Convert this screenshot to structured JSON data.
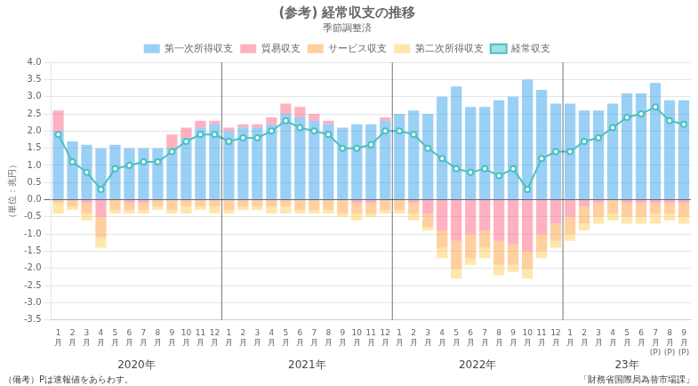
{
  "chart_data": {
    "type": "bar",
    "title": "(参考) 経常収支の推移",
    "subtitle": "季節調整済",
    "y_label": "（単位：兆円）",
    "footer": [
      "（備考）Pは速報値をあらわす。",
      "「財務省国際局為替市場課」"
    ],
    "annotations": [
      "2020年",
      "2021年",
      "2022年",
      "23年"
    ],
    "categories": [
      "1\n月",
      "2\n月",
      "3\n月",
      "4\n月",
      "5\n月",
      "6\n月",
      "7\n月",
      "8\n月",
      "9\n月",
      "10\n月",
      "11\n月",
      "12\n月",
      "1\n月",
      "2\n月",
      "3\n月",
      "4\n月",
      "5\n月",
      "6\n月",
      "7\n月",
      "8\n月",
      "9\n月",
      "10\n月",
      "11\n月",
      "12\n月",
      "1\n月",
      "2\n月",
      "3\n月",
      "4\n月",
      "5\n月",
      "6\n月",
      "7\n月",
      "8\n月",
      "9\n月",
      "10\n月",
      "11\n月",
      "12\n月",
      "1\n月",
      "2\n月",
      "3\n月",
      "4\n月",
      "5\n月",
      "6\n月",
      "7\n月\n(P)",
      "8\n月\n(P)",
      "9\n月\n(P)"
    ],
    "series": [
      {
        "name": "第一次所得収支",
        "values": [
          2.0,
          1.7,
          1.6,
          1.5,
          1.6,
          1.5,
          1.5,
          1.5,
          1.5,
          1.8,
          2.1,
          2.2,
          2.0,
          2.1,
          2.1,
          2.2,
          2.5,
          2.4,
          2.3,
          2.2,
          2.1,
          2.2,
          2.2,
          2.3,
          2.5,
          2.6,
          2.5,
          3.0,
          3.3,
          2.7,
          2.7,
          2.9,
          3.0,
          3.5,
          3.2,
          2.8,
          2.8,
          2.6,
          2.6,
          2.8,
          3.1,
          3.1,
          3.4,
          2.9,
          2.9
        ]
      },
      {
        "name": "貿易収支",
        "values": [
          0.6,
          0.0,
          -0.1,
          -0.5,
          0.0,
          -0.1,
          -0.1,
          0.0,
          0.4,
          0.3,
          0.2,
          0.1,
          0.1,
          0.1,
          0.1,
          0.2,
          0.3,
          0.3,
          0.2,
          0.1,
          0.0,
          -0.1,
          -0.1,
          0.1,
          0.0,
          -0.1,
          -0.4,
          -0.9,
          -1.2,
          -1.0,
          -0.9,
          -1.2,
          -1.3,
          -1.5,
          -1.0,
          -0.7,
          -0.5,
          -0.2,
          -0.1,
          0.0,
          -0.1,
          -0.1,
          -0.1,
          -0.1,
          -0.1
        ]
      },
      {
        "name": "サービス収支",
        "values": [
          -0.1,
          -0.2,
          -0.3,
          -0.6,
          -0.3,
          -0.2,
          -0.2,
          -0.2,
          -0.3,
          -0.2,
          -0.2,
          -0.2,
          -0.3,
          -0.2,
          -0.2,
          -0.2,
          -0.2,
          -0.3,
          -0.3,
          -0.3,
          -0.4,
          -0.3,
          -0.3,
          -0.3,
          -0.3,
          -0.3,
          -0.4,
          -0.5,
          -0.8,
          -0.7,
          -0.5,
          -0.7,
          -0.6,
          -0.5,
          -0.5,
          -0.5,
          -0.5,
          -0.5,
          -0.4,
          -0.4,
          -0.4,
          -0.4,
          -0.3,
          -0.3,
          -0.4
        ]
      },
      {
        "name": "第二次所得収支",
        "values": [
          -0.3,
          -0.1,
          -0.2,
          -0.3,
          -0.1,
          -0.1,
          -0.1,
          -0.1,
          -0.1,
          -0.2,
          -0.1,
          -0.2,
          -0.1,
          -0.1,
          -0.1,
          -0.2,
          -0.2,
          -0.1,
          -0.1,
          -0.1,
          -0.1,
          -0.2,
          -0.1,
          -0.1,
          -0.1,
          -0.2,
          -0.1,
          -0.3,
          -0.3,
          -0.2,
          -0.3,
          -0.3,
          -0.2,
          -0.3,
          -0.2,
          -0.2,
          -0.2,
          -0.2,
          -0.2,
          -0.2,
          -0.2,
          -0.2,
          -0.3,
          -0.2,
          -0.2
        ]
      },
      {
        "name": "経常収支",
        "type": "line",
        "marker": "circle",
        "values": [
          1.9,
          1.1,
          0.8,
          0.3,
          0.9,
          1.0,
          1.1,
          1.1,
          1.4,
          1.7,
          1.9,
          1.9,
          1.7,
          1.8,
          1.8,
          2.0,
          2.3,
          2.1,
          2.0,
          1.9,
          1.5,
          1.5,
          1.6,
          2.0,
          2.0,
          1.9,
          1.5,
          1.2,
          0.9,
          0.8,
          0.9,
          0.7,
          0.9,
          0.3,
          1.2,
          1.4,
          1.4,
          1.7,
          1.8,
          2.1,
          2.4,
          2.5,
          2.7,
          2.3,
          2.2
        ]
      }
    ],
    "stacked": true,
    "ylim": [
      -3.5,
      4.0
    ],
    "yticks": [
      -3.5,
      {
        "value": -3.0,
        "label": "-3.0"
      },
      -2.5,
      {
        "value": -2.0,
        "label": "-2.0"
      },
      -1.5,
      {
        "value": -1.0,
        "label": "-1.0"
      },
      -0.5,
      {
        "value": 0.0,
        "label": "0.0"
      },
      0.5,
      {
        "value": 1.0,
        "label": "1.0"
      },
      1.5,
      {
        "value": 2.0,
        "label": "2.0"
      },
      2.5,
      {
        "value": 3.0,
        "label": "3.0"
      },
      3.5,
      {
        "value": 4.0,
        "label": "4.0"
      }
    ],
    "grid": true,
    "legend": "top"
  }
}
